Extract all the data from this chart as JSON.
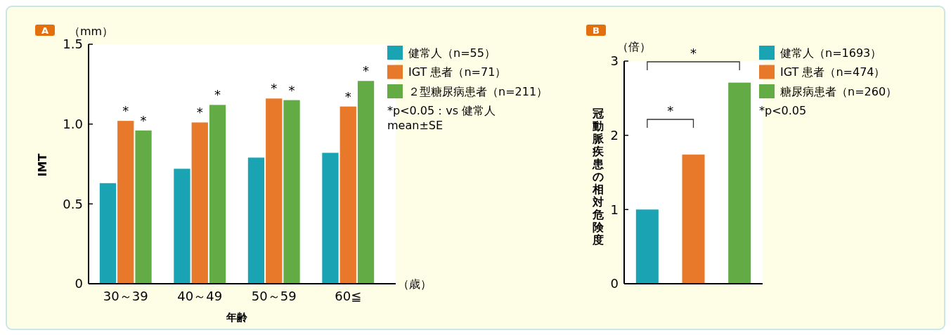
{
  "chart_data": [
    {
      "type": "bar",
      "title": "A",
      "xlabel": "年齢",
      "ylabel": "IMT",
      "categories": [
        "30～39",
        "40～49",
        "50～59",
        "60≦"
      ],
      "series": [
        {
          "name": "健常人（n=55）",
          "color": "#1aa3b3",
          "values": [
            0.63,
            0.72,
            0.79,
            0.82
          ]
        },
        {
          "name": "IGT 患者（n=71）",
          "color": "#e8782a",
          "values": [
            1.02,
            1.01,
            1.16,
            1.11
          ]
        },
        {
          "name": "２型糖尿病患者（n=211）",
          "color": "#62ab45",
          "values": [
            0.96,
            1.12,
            1.15,
            1.27
          ]
        }
      ],
      "ylim": [
        0,
        1.5
      ],
      "yticks": [
        0,
        0.5,
        {
          "value": 1,
          "label": "1.0"
        },
        1.5
      ],
      "legend": "right",
      "annotations": [
        "（mm）",
        "（歳）",
        "*p<0.05：vs 健常人",
        "mean±SE",
        "*",
        "*",
        "*",
        "*",
        "*",
        "*",
        "*",
        "*"
      ]
    },
    {
      "type": "bar",
      "title": "B",
      "ylabel": "冠動脈疾患の相対危険度",
      "categories": [
        null,
        null,
        null
      ],
      "series": [
        {
          "name": "健常人（n=1693）",
          "color": "#1aa3b3",
          "values": [
            1.0,
            null,
            null
          ]
        },
        {
          "name": "IGT 患者（n=474）",
          "color": "#e8782a",
          "values": [
            null,
            1.74,
            null
          ]
        },
        {
          "name": "糖尿病患者（n=260）",
          "color": "#62ab45",
          "values": [
            null,
            null,
            2.71
          ]
        }
      ],
      "ylim": [
        0,
        3
      ],
      "yticks": [
        0,
        1,
        2,
        3
      ],
      "legend": "right",
      "annotations": [
        "（倍）",
        "*p<0.05",
        "*",
        "*"
      ]
    }
  ]
}
